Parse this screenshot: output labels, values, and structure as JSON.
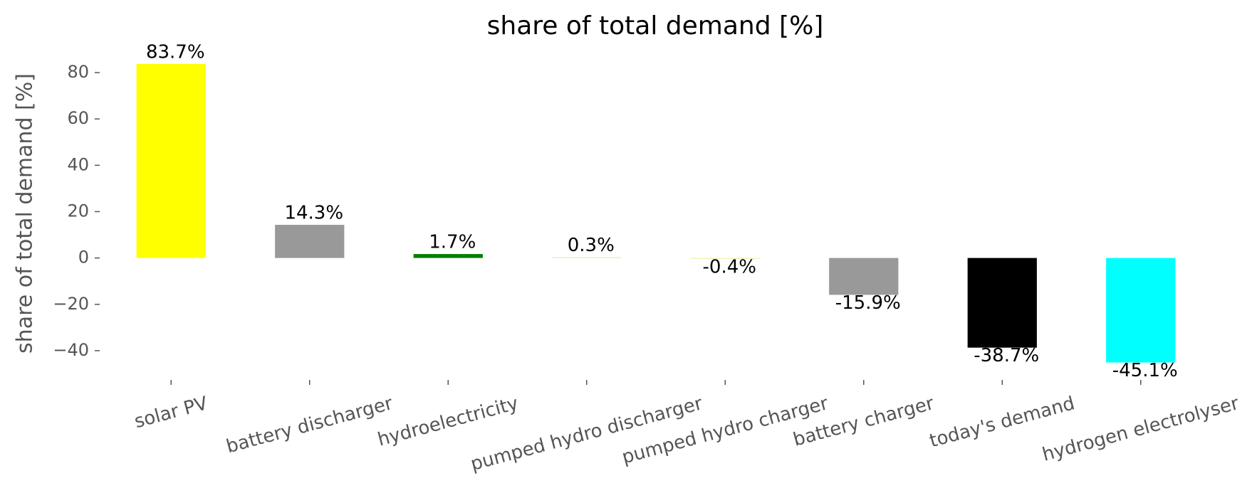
{
  "chart_data": {
    "type": "bar",
    "title": "share of total demand [%]",
    "y_label": "share of total demand [%]",
    "categories": [
      "solar PV",
      "battery discharger",
      "hydroelectricity",
      "pumped hydro discharger",
      "pumped hydro charger",
      "battery charger",
      "today's demand",
      "hydrogen electrolyser"
    ],
    "values": [
      83.7,
      14.3,
      1.7,
      0.3,
      -0.4,
      -15.9,
      -38.7,
      -45.1
    ],
    "value_labels": [
      "83.7%",
      "14.3%",
      "1.7%",
      "0.3%",
      "-0.4%",
      "-15.9%",
      "-38.7%",
      "-45.1%"
    ],
    "colors": [
      "#ffff00",
      "#999999",
      "#008000",
      "#c8f0a0",
      "#f0f0b0",
      "#999999",
      "#000000",
      "#00ffff"
    ],
    "ylim": [
      -52,
      88
    ],
    "yticks": [
      {
        "value": -40,
        "label": "−40"
      },
      {
        "value": -20,
        "label": "−20"
      },
      0,
      20,
      40,
      60,
      80
    ],
    "grid": false
  }
}
